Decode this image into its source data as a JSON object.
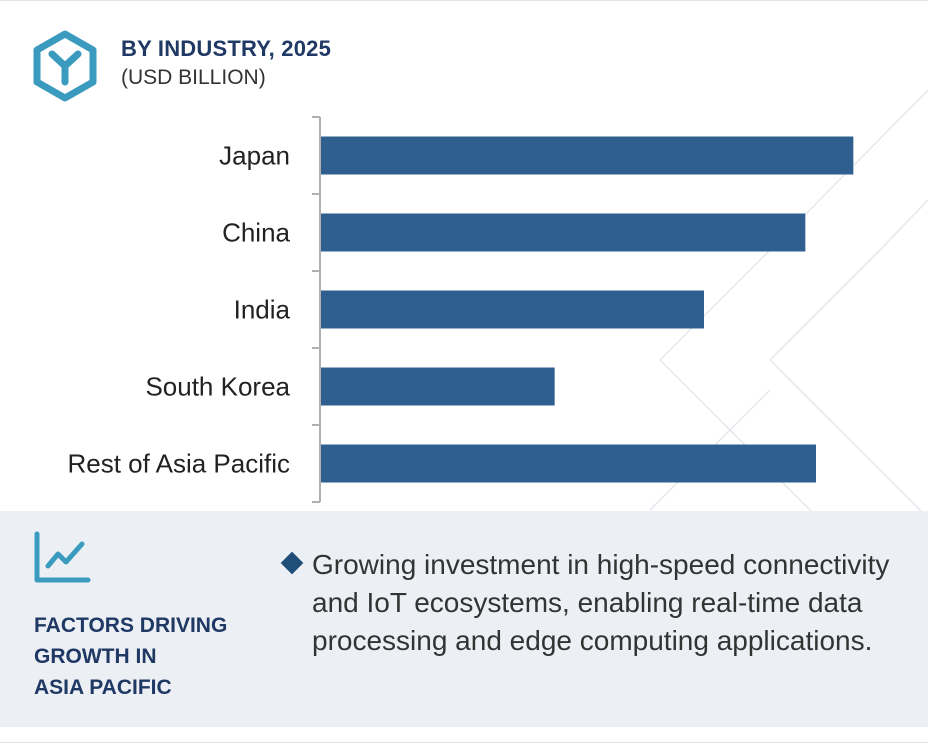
{
  "header": {
    "title": "BY INDUSTRY, 2025",
    "subtitle": "(USD BILLION)",
    "logo_icon": "hexagon-y-logo-icon"
  },
  "chart_data": {
    "type": "bar",
    "orientation": "horizontal",
    "title": "BY INDUSTRY, 2025",
    "subtitle": "(USD BILLION)",
    "categories": [
      "Japan",
      "China",
      "India",
      "South Korea",
      "Rest of Asia Pacific"
    ],
    "values": [
      100,
      91,
      72,
      44,
      93
    ],
    "value_scale": "relative (no axis values shown)",
    "xlim": [
      0,
      105
    ],
    "bar_color": "#2f5f8f",
    "grid": false,
    "legend": "none"
  },
  "factors": {
    "icon": "trend-line-icon",
    "title_lines": [
      "FACTORS DRIVING",
      "GROWTH IN",
      "ASIA PACIFIC"
    ],
    "bullet": "Growing investment in high-speed connectivity and IoT ecosystems, enabling real-time data processing and edge computing applications."
  },
  "colors": {
    "accent": "#1f3864",
    "bar": "#2f5f8f",
    "icon_teal": "#3a9bbf",
    "panel_bg": "#ecf0f5"
  }
}
